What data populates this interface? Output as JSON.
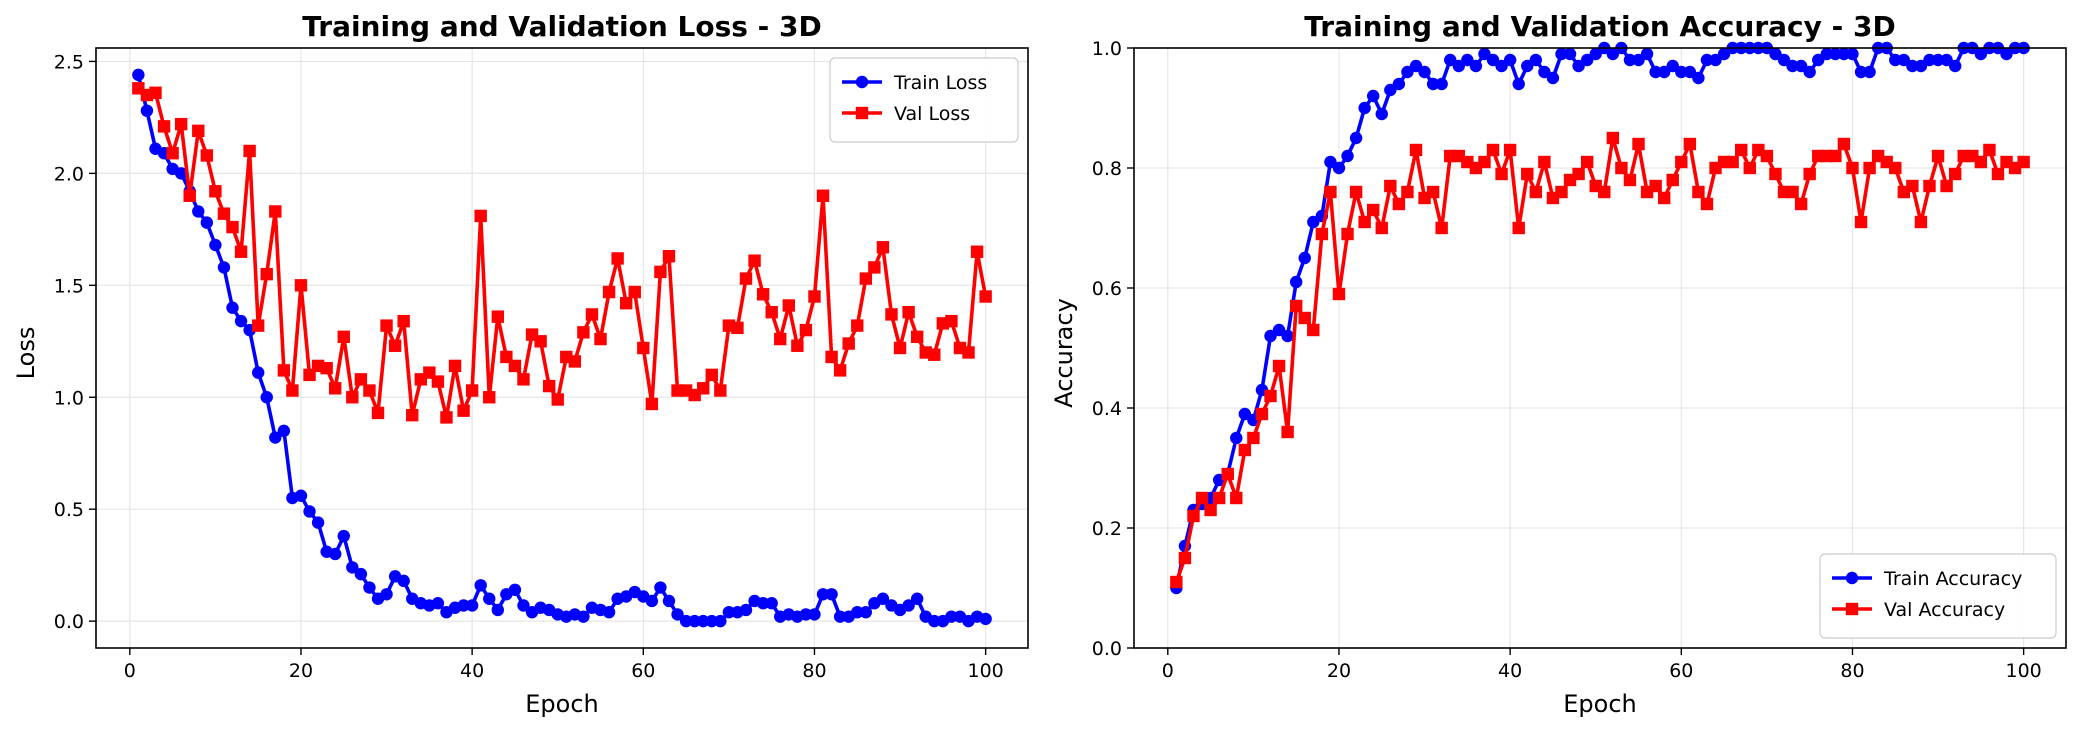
{
  "chart_data": [
    {
      "type": "line",
      "title": "Training and Validation Loss - 3D",
      "xlabel": "Epoch",
      "ylabel": "Loss",
      "xlim": [
        -3.95,
        104.95
      ],
      "ylim": [
        -0.12,
        2.56
      ],
      "xticks": [
        0,
        20,
        40,
        60,
        80,
        100
      ],
      "yticks": [
        0.0,
        0.5,
        1.0,
        1.5,
        2.0,
        2.5
      ],
      "ytick_labels": [
        "0.0",
        "0.5",
        "1.0",
        "1.5",
        "2.0",
        "2.5"
      ],
      "grid": true,
      "legend_position": "top-right",
      "x_start": 1,
      "series": [
        {
          "name": "Train Loss",
          "color": "#0000ff",
          "marker": "circle",
          "values": [
            2.44,
            2.28,
            2.11,
            2.09,
            2.02,
            2.0,
            1.92,
            1.83,
            1.78,
            1.68,
            1.58,
            1.4,
            1.34,
            1.3,
            1.11,
            1.0,
            0.82,
            0.85,
            0.55,
            0.56,
            0.49,
            0.44,
            0.31,
            0.3,
            0.38,
            0.24,
            0.21,
            0.15,
            0.1,
            0.12,
            0.2,
            0.18,
            0.1,
            0.08,
            0.07,
            0.08,
            0.04,
            0.06,
            0.07,
            0.07,
            0.16,
            0.1,
            0.05,
            0.12,
            0.14,
            0.07,
            0.04,
            0.06,
            0.05,
            0.03,
            0.02,
            0.03,
            0.02,
            0.06,
            0.05,
            0.04,
            0.1,
            0.11,
            0.13,
            0.11,
            0.09,
            0.15,
            0.09,
            0.03,
            0.0,
            0.0,
            0.0,
            0.0,
            0.0,
            0.04,
            0.04,
            0.05,
            0.09,
            0.08,
            0.08,
            0.02,
            0.03,
            0.02,
            0.03,
            0.03,
            0.12,
            0.12,
            0.02,
            0.02,
            0.04,
            0.04,
            0.08,
            0.1,
            0.07,
            0.05,
            0.07,
            0.1,
            0.02,
            0.0,
            0.0,
            0.02,
            0.02,
            0.0,
            0.02,
            0.01
          ]
        },
        {
          "name": "Val Loss",
          "color": "#ff0000",
          "marker": "square",
          "values": [
            2.38,
            2.35,
            2.36,
            2.21,
            2.09,
            2.22,
            1.9,
            2.19,
            2.08,
            1.92,
            1.82,
            1.76,
            1.65,
            2.1,
            1.32,
            1.55,
            1.83,
            1.12,
            1.03,
            1.5,
            1.1,
            1.14,
            1.13,
            1.04,
            1.27,
            1.0,
            1.08,
            1.03,
            0.93,
            1.32,
            1.23,
            1.34,
            0.92,
            1.08,
            1.11,
            1.07,
            0.91,
            1.14,
            0.94,
            1.03,
            1.81,
            1.0,
            1.36,
            1.18,
            1.14,
            1.08,
            1.28,
            1.25,
            1.05,
            0.99,
            1.18,
            1.16,
            1.29,
            1.37,
            1.26,
            1.47,
            1.62,
            1.42,
            1.47,
            1.22,
            0.97,
            1.56,
            1.63,
            1.03,
            1.03,
            1.01,
            1.04,
            1.1,
            1.03,
            1.32,
            1.31,
            1.53,
            1.61,
            1.46,
            1.38,
            1.26,
            1.41,
            1.23,
            1.3,
            1.45,
            1.9,
            1.18,
            1.12,
            1.24,
            1.32,
            1.53,
            1.58,
            1.67,
            1.37,
            1.22,
            1.38,
            1.27,
            1.2,
            1.19,
            1.33,
            1.34,
            1.22,
            1.2,
            1.65,
            1.45
          ]
        }
      ]
    },
    {
      "type": "line",
      "title": "Training and Validation Accuracy - 3D",
      "xlabel": "Epoch",
      "ylabel": "Accuracy",
      "xlim": [
        -3.95,
        104.95
      ],
      "ylim": [
        0.0,
        1.0
      ],
      "xticks": [
        0,
        20,
        40,
        60,
        80,
        100
      ],
      "yticks": [
        0.0,
        0.2,
        0.4,
        0.6,
        0.8,
        1.0
      ],
      "ytick_labels": [
        "0.0",
        "0.2",
        "0.4",
        "0.6",
        "0.8",
        "1.0"
      ],
      "grid": true,
      "legend_position": "bottom-right",
      "x_start": 1,
      "series": [
        {
          "name": "Train Accuracy",
          "color": "#0000ff",
          "marker": "circle",
          "values": [
            0.1,
            0.17,
            0.23,
            0.24,
            0.25,
            0.28,
            0.29,
            0.35,
            0.39,
            0.38,
            0.43,
            0.52,
            0.53,
            0.52,
            0.61,
            0.65,
            0.71,
            0.72,
            0.81,
            0.8,
            0.82,
            0.85,
            0.9,
            0.92,
            0.89,
            0.93,
            0.94,
            0.96,
            0.97,
            0.96,
            0.94,
            0.94,
            0.98,
            0.97,
            0.98,
            0.97,
            0.99,
            0.98,
            0.97,
            0.98,
            0.94,
            0.97,
            0.98,
            0.96,
            0.95,
            0.99,
            0.99,
            0.97,
            0.98,
            0.99,
            1.0,
            0.99,
            1.0,
            0.98,
            0.98,
            0.99,
            0.96,
            0.96,
            0.97,
            0.96,
            0.96,
            0.95,
            0.98,
            0.98,
            0.99,
            1.0,
            1.0,
            1.0,
            1.0,
            1.0,
            0.99,
            0.98,
            0.97,
            0.97,
            0.96,
            0.98,
            0.99,
            0.99,
            0.99,
            0.99,
            0.96,
            0.96,
            1.0,
            1.0,
            0.98,
            0.98,
            0.97,
            0.97,
            0.98,
            0.98,
            0.98,
            0.97,
            1.0,
            1.0,
            0.99,
            1.0,
            1.0,
            0.99,
            1.0,
            1.0
          ]
        },
        {
          "name": "Val Accuracy",
          "color": "#ff0000",
          "marker": "square",
          "values": [
            0.11,
            0.15,
            0.22,
            0.25,
            0.23,
            0.25,
            0.29,
            0.25,
            0.33,
            0.35,
            0.39,
            0.42,
            0.47,
            0.36,
            0.57,
            0.55,
            0.53,
            0.69,
            0.76,
            0.59,
            0.69,
            0.76,
            0.71,
            0.73,
            0.7,
            0.77,
            0.74,
            0.76,
            0.83,
            0.75,
            0.76,
            0.7,
            0.82,
            0.82,
            0.81,
            0.8,
            0.81,
            0.83,
            0.79,
            0.83,
            0.7,
            0.79,
            0.76,
            0.81,
            0.75,
            0.76,
            0.78,
            0.79,
            0.81,
            0.77,
            0.76,
            0.85,
            0.8,
            0.78,
            0.84,
            0.76,
            0.77,
            0.75,
            0.78,
            0.81,
            0.84,
            0.76,
            0.74,
            0.8,
            0.81,
            0.81,
            0.83,
            0.8,
            0.83,
            0.82,
            0.79,
            0.76,
            0.76,
            0.74,
            0.79,
            0.82,
            0.82,
            0.82,
            0.84,
            0.8,
            0.71,
            0.8,
            0.82,
            0.81,
            0.8,
            0.76,
            0.77,
            0.71,
            0.77,
            0.82,
            0.77,
            0.79,
            0.82,
            0.82,
            0.81,
            0.83,
            0.79,
            0.81,
            0.8,
            0.81
          ]
        }
      ]
    }
  ]
}
